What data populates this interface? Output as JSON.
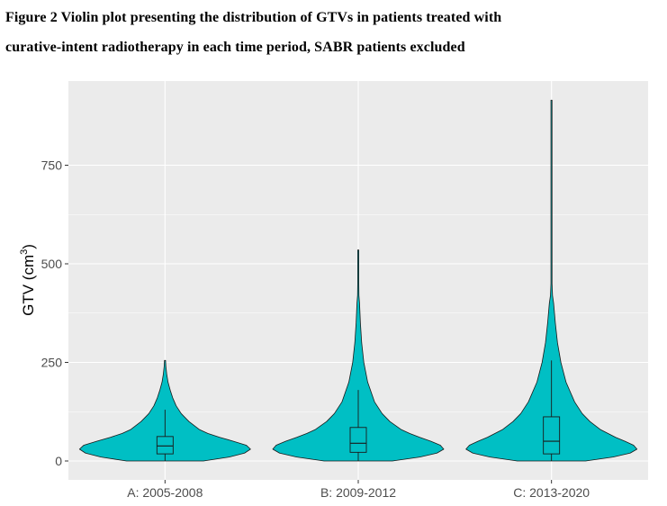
{
  "figure": {
    "title_line1": "Figure 2 Violin plot presenting the distribution of GTVs in patients treated with",
    "title_line2": "curative-intent radiotherapy in each time period, SABR patients excluded"
  },
  "chart_data": {
    "type": "violin",
    "title": "",
    "xlabel": "",
    "ylabel": "GTV (cm",
    "ylabel_superscript": "3",
    "ylabel_suffix": ")",
    "ylim": [
      -40,
      920
    ],
    "yticks": [
      0,
      250,
      500,
      750
    ],
    "grid": true,
    "fill_color": "#00BFC4",
    "panel_color": "#EBEBEB",
    "categories": [
      "A: 2005-2008",
      "B: 2009-2012",
      "C: 2013-2020"
    ],
    "violins": [
      {
        "name": "A: 2005-2008",
        "max": 255,
        "profile": [
          [
            0,
            0.45
          ],
          [
            10,
            0.75
          ],
          [
            20,
            0.93
          ],
          [
            30,
            1.0
          ],
          [
            40,
            0.95
          ],
          [
            50,
            0.8
          ],
          [
            60,
            0.64
          ],
          [
            70,
            0.5
          ],
          [
            80,
            0.4
          ],
          [
            100,
            0.28
          ],
          [
            120,
            0.19
          ],
          [
            140,
            0.13
          ],
          [
            160,
            0.09
          ],
          [
            180,
            0.06
          ],
          [
            200,
            0.035
          ],
          [
            220,
            0.02
          ],
          [
            240,
            0.01
          ],
          [
            255,
            0.005
          ]
        ],
        "box": {
          "q1": 18,
          "median": 38,
          "q3": 62,
          "whisker_low": 0,
          "whisker_high": 130
        }
      },
      {
        "name": "B: 2009-2012",
        "max": 535,
        "profile": [
          [
            0,
            0.4
          ],
          [
            10,
            0.72
          ],
          [
            20,
            0.92
          ],
          [
            30,
            1.0
          ],
          [
            40,
            0.96
          ],
          [
            50,
            0.85
          ],
          [
            60,
            0.72
          ],
          [
            70,
            0.6
          ],
          [
            80,
            0.5
          ],
          [
            100,
            0.37
          ],
          [
            120,
            0.28
          ],
          [
            150,
            0.19
          ],
          [
            200,
            0.11
          ],
          [
            250,
            0.065
          ],
          [
            300,
            0.04
          ],
          [
            350,
            0.025
          ],
          [
            400,
            0.015
          ],
          [
            420,
            0.008
          ],
          [
            450,
            0.005
          ],
          [
            535,
            0.004
          ]
        ],
        "box": {
          "q1": 22,
          "median": 45,
          "q3": 85,
          "whisker_low": 0,
          "whisker_high": 180
        }
      },
      {
        "name": "C: 2013-2020",
        "max": 915,
        "profile": [
          [
            0,
            0.4
          ],
          [
            10,
            0.72
          ],
          [
            20,
            0.92
          ],
          [
            30,
            1.0
          ],
          [
            40,
            0.96
          ],
          [
            50,
            0.86
          ],
          [
            60,
            0.75
          ],
          [
            80,
            0.57
          ],
          [
            100,
            0.45
          ],
          [
            120,
            0.36
          ],
          [
            150,
            0.27
          ],
          [
            200,
            0.17
          ],
          [
            250,
            0.11
          ],
          [
            300,
            0.07
          ],
          [
            350,
            0.045
          ],
          [
            400,
            0.025
          ],
          [
            420,
            0.012
          ],
          [
            450,
            0.006
          ],
          [
            500,
            0.004
          ],
          [
            600,
            0.003
          ],
          [
            915,
            0.002
          ]
        ],
        "box": {
          "q1": 18,
          "median": 50,
          "q3": 112,
          "whisker_low": 0,
          "whisker_high": 255
        }
      }
    ]
  }
}
